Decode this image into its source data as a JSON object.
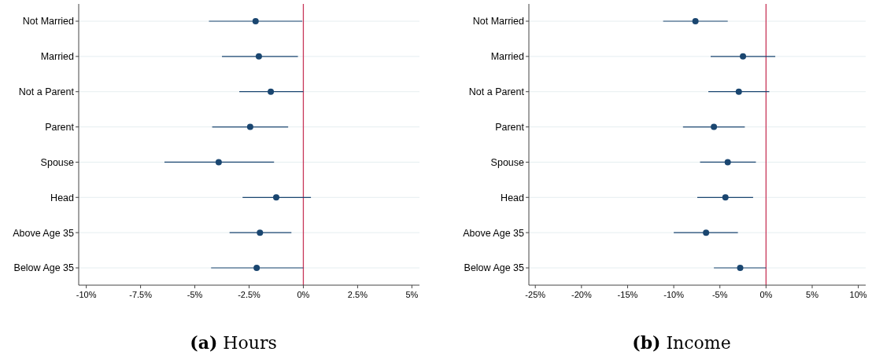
{
  "chart_data": [
    {
      "type": "scatter",
      "orientation": "horizontal",
      "title": "(a) Hours",
      "categories": [
        "Not Married",
        "Married",
        "Not a Parent",
        "Parent",
        "Spouse",
        "Head",
        "Above Age 35",
        "Below Age 35"
      ],
      "series": [
        {
          "color": "#1a4670",
          "values": [
            -2.2,
            -2.05,
            -1.5,
            -2.45,
            -3.9,
            -1.25,
            -2.0,
            -2.15
          ],
          "errors": [
            [
              -4.35,
              -0.05
            ],
            [
              -3.75,
              -0.25
            ],
            [
              -2.95,
              0
            ],
            [
              -4.2,
              -0.7
            ],
            [
              -6.4,
              -1.35
            ],
            [
              -2.8,
              0.35
            ],
            [
              -3.4,
              -0.55
            ],
            [
              -4.25,
              0
            ]
          ]
        }
      ],
      "xlim": [
        -10.35,
        5.35
      ],
      "xticks": [
        {
          "value": -10,
          "label": "-10%"
        },
        {
          "value": -7.5,
          "label": "-7.5%"
        },
        {
          "value": -5,
          "label": "-5%"
        },
        {
          "value": -2.5,
          "label": "-2.5%"
        },
        {
          "value": 0,
          "label": "0%"
        },
        {
          "value": 2.5,
          "label": "2.5%"
        },
        {
          "value": 5,
          "label": "5%"
        }
      ],
      "ref_lines": [
        {
          "axis": "x",
          "value": 0,
          "color": "#c8385a"
        }
      ],
      "grid": "y",
      "marker": "circle"
    },
    {
      "type": "scatter",
      "orientation": "horizontal",
      "title": "(b) Income",
      "categories": [
        "Not Married",
        "Married",
        "Not a Parent",
        "Parent",
        "Spouse",
        "Head",
        "Above Age 35",
        "Below Age 35"
      ],
      "series": [
        {
          "color": "#1a4670",
          "values": [
            -7.65,
            -2.5,
            -2.95,
            -5.65,
            -4.15,
            -4.4,
            -6.5,
            -2.8
          ],
          "errors": [
            [
              -11.15,
              -4.15
            ],
            [
              -6.0,
              1.0
            ],
            [
              -6.25,
              0.35
            ],
            [
              -9.0,
              -2.3
            ],
            [
              -7.15,
              -1.1
            ],
            [
              -7.45,
              -1.4
            ],
            [
              -10.0,
              -3.05
            ],
            [
              -5.65,
              0
            ]
          ]
        }
      ],
      "xlim": [
        -25.7,
        10.8
      ],
      "xticks": [
        {
          "value": -25,
          "label": "-25%"
        },
        {
          "value": -20,
          "label": "-20%"
        },
        {
          "value": -15,
          "label": "-15%"
        },
        {
          "value": -10,
          "label": "-10%"
        },
        {
          "value": -5,
          "label": "-5%"
        },
        {
          "value": 0,
          "label": "0%"
        },
        {
          "value": 5,
          "label": "5%"
        },
        {
          "value": 10,
          "label": "10%"
        }
      ],
      "ref_lines": [
        {
          "axis": "x",
          "value": 0,
          "color": "#c8385a"
        }
      ],
      "grid": "y",
      "marker": "circle"
    }
  ]
}
